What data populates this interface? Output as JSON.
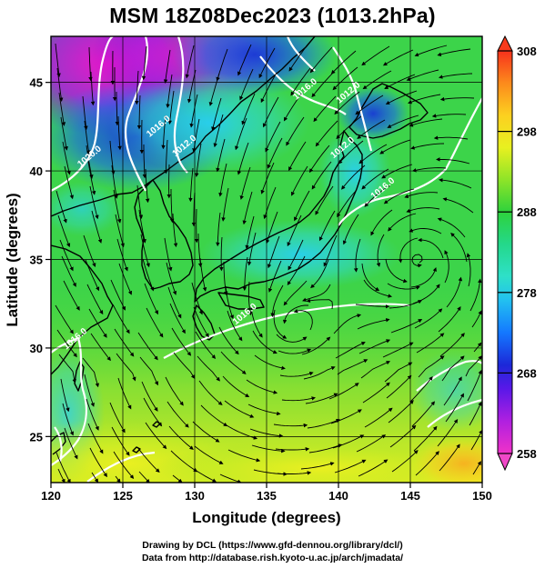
{
  "title": "MSM 18Z08Dec2023 (1013.2hPa)",
  "x_axis": {
    "label": "Longitude (degrees)",
    "min": 120,
    "max": 150,
    "ticks": [
      120,
      125,
      130,
      135,
      140,
      145,
      150
    ]
  },
  "y_axis": {
    "label": "Latitude  (degrees)",
    "min": 22.4,
    "max": 47.6,
    "ticks": [
      25,
      30,
      35,
      40,
      45
    ]
  },
  "colorbar": {
    "min": 258,
    "max": 308,
    "ticks": [
      258,
      268,
      278,
      288,
      298,
      308
    ]
  },
  "isobars": [
    {
      "label": "1020.0",
      "lon": 122.8,
      "lat": 40.7
    },
    {
      "label": "1016.0",
      "lon": 127.6,
      "lat": 42.4
    },
    {
      "label": "1012.0",
      "lon": 129.4,
      "lat": 41.3
    },
    {
      "label": "1016.0",
      "lon": 137.8,
      "lat": 44.5
    },
    {
      "label": "1012.0",
      "lon": 140.8,
      "lat": 44.3
    },
    {
      "label": "1016.0",
      "lon": 143.2,
      "lat": 38.9
    },
    {
      "label": "1012.0",
      "lon": 140.4,
      "lat": 41.2
    },
    {
      "label": "1016.0",
      "lon": 121.8,
      "lat": 30.4
    },
    {
      "label": "1016.0",
      "lon": 133.6,
      "lat": 31.8
    }
  ],
  "cyclones": [
    {
      "lon": 145.6,
      "lat": 35.0
    },
    {
      "lon": 136.7,
      "lat": 31.2
    }
  ],
  "footer": {
    "line1": "Drawing by DCL (https://www.gfd-dennou.org/library/dcl/)",
    "line2": "Data from http://database.rish.kyoto-u.ac.jp/arch/jmadata/"
  }
}
